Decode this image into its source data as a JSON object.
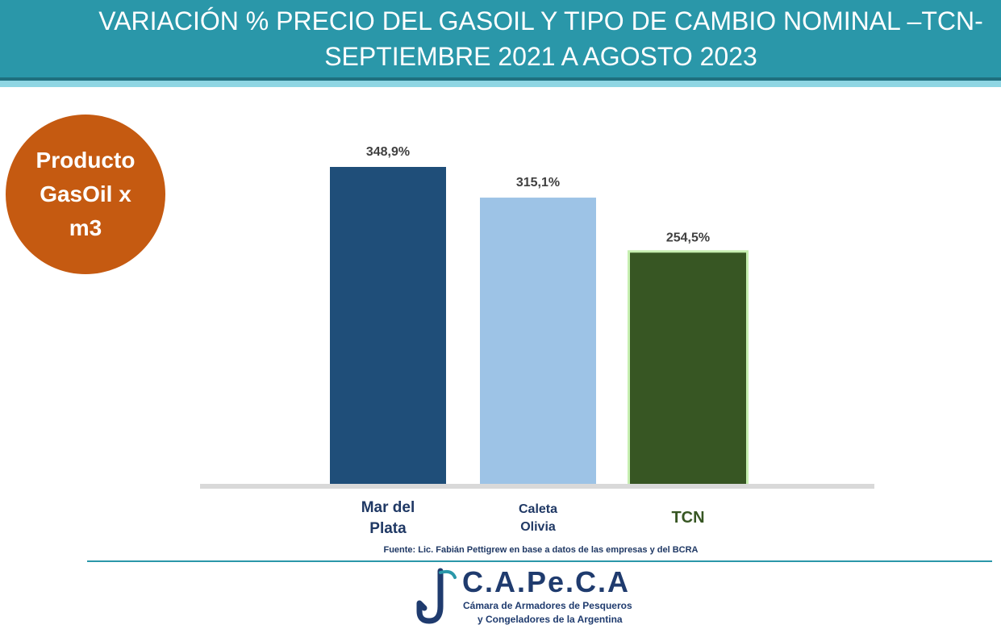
{
  "header": {
    "title_line1": "VARIACIÓN % PRECIO DEL GASOIL Y TIPO DE CAMBIO NOMINAL –TCN-",
    "title_line2": "SEPTIEMBRE 2021 A AGOSTO 2023",
    "color": "#2a97a9"
  },
  "badge": {
    "text": "Producto\nGasOil x\nm3",
    "color": "#c55a11"
  },
  "chart_data": {
    "type": "bar",
    "title": "VARIACIÓN % PRECIO DEL GASOIL Y TIPO DE CAMBIO NOMINAL –TCN- SEPTIEMBRE 2021 A AGOSTO 2023",
    "categories": [
      "Mar del\nPlata",
      "Caleta\nOlivia",
      "TCN"
    ],
    "values": [
      348.9,
      315.1,
      254.5
    ],
    "data_labels": [
      "348,9%",
      "315,1%",
      "254,5%"
    ],
    "bar_colors": [
      "#1f4e79",
      "#9dc3e6",
      "#375623"
    ],
    "label_colors": [
      "#1f3864",
      "#1f3864",
      "#375623"
    ],
    "ylim": [
      0,
      348.9
    ],
    "grid": false,
    "legend": "none"
  },
  "source": "Fuente: Lic. Fabián Pettigrew en base a datos de las empresas y del BCRA",
  "logo": {
    "name": "C.A.Pe.C.A",
    "line1": "Cámara de Armadores de Pesqueros",
    "line2": "y Congeladores de la Argentina",
    "icon": "fish-hook-icon"
  }
}
